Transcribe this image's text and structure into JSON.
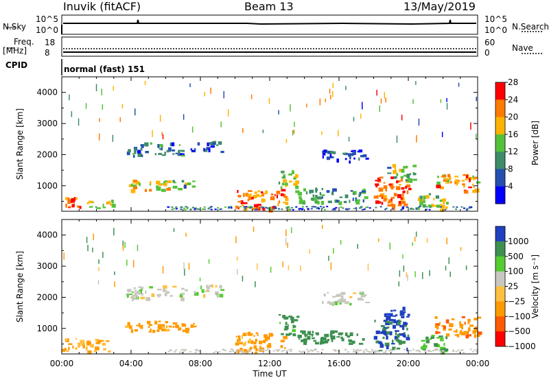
{
  "header": {
    "station": "Inuvik (fitACF)",
    "beam": "Beam 13",
    "date": "13/May/2019"
  },
  "status_panels": {
    "nsky_label": "N.Sky",
    "nsky_ticks": [
      "10^5",
      "10^0"
    ],
    "nsearch_label": "N.Search",
    "nsearch_ticks": [
      "10^5",
      "10^0"
    ],
    "freq_label": "Freq.",
    "freq_unit": "[MHz]",
    "freq_ticks": [
      "18",
      "8"
    ],
    "nave_label": "Nave",
    "nave_ticks": [
      "60",
      "0"
    ],
    "cpid_label": "CPID",
    "cpid_text": "normal (fast) 151"
  },
  "chart_data": [
    {
      "type": "heatmap",
      "name": "power",
      "ylabel": "Slant Range [km]",
      "ylim": [
        180,
        4500
      ],
      "y_ticks": [
        1000,
        2000,
        3000,
        4000
      ],
      "xlim": [
        0,
        24
      ],
      "x_tick_labels": [
        "00:00",
        "04:00",
        "08:00",
        "12:00",
        "16:00",
        "20:00",
        "00:00"
      ],
      "colorbar_label": "Power [dB]",
      "colorbar_ticks": [
        "4",
        "8",
        "12",
        "16",
        "20",
        "24",
        "28"
      ],
      "colors": [
        "#0000ff",
        "#2550b0",
        "#3f8c6a",
        "#55c13a",
        "#ffb300",
        "#ff7a00",
        "#ff0000"
      ],
      "clusters": [
        {
          "t": [
            0.0,
            1.3
          ],
          "r": [
            280,
            700
          ],
          "value": 26
        },
        {
          "t": [
            1.3,
            3.0
          ],
          "r": [
            300,
            560
          ],
          "value": 18
        },
        {
          "t": [
            3.6,
            6.3
          ],
          "r": [
            880,
            1200
          ],
          "value": 21
        },
        {
          "t": [
            6.3,
            7.6
          ],
          "r": [
            900,
            1220
          ],
          "value": 14
        },
        {
          "t": [
            3.7,
            7.0
          ],
          "r": [
            1980,
            2400
          ],
          "value": 10
        },
        {
          "t": [
            7.4,
            9.2
          ],
          "r": [
            2100,
            2450
          ],
          "value": 7
        },
        {
          "t": [
            10.0,
            13.0
          ],
          "r": [
            250,
            900
          ],
          "value": 24
        },
        {
          "t": [
            12.5,
            13.6
          ],
          "r": [
            800,
            1500
          ],
          "value": 16
        },
        {
          "t": [
            13.6,
            17.5
          ],
          "r": [
            500,
            950
          ],
          "value": 12
        },
        {
          "t": [
            15.0,
            17.6
          ],
          "r": [
            1800,
            2200
          ],
          "value": 7
        },
        {
          "t": [
            18.0,
            20.0
          ],
          "r": [
            300,
            1300
          ],
          "value": 25
        },
        {
          "t": [
            18.6,
            20.3
          ],
          "r": [
            1200,
            1700
          ],
          "value": 14
        },
        {
          "t": [
            20.5,
            22.2
          ],
          "r": [
            250,
            800
          ],
          "value": 17
        },
        {
          "t": [
            21.5,
            24.0
          ],
          "r": [
            800,
            1400
          ],
          "value": 22
        }
      ]
    },
    {
      "type": "heatmap",
      "name": "velocity",
      "ylabel": "Slant Range [km]",
      "ylim": [
        180,
        4500
      ],
      "y_ticks": [
        1000,
        2000,
        3000,
        4000
      ],
      "xlim": [
        0,
        24
      ],
      "x_tick_labels": [
        "00:00",
        "04:00",
        "08:00",
        "12:00",
        "16:00",
        "20:00",
        "00:00"
      ],
      "xlabel": "Time UT",
      "colorbar_label": "Velocity [m s⁻¹]",
      "colorbar_ticks": [
        "1000",
        "500",
        "100",
        "25",
        "−25",
        "−100",
        "−500",
        "−1000"
      ],
      "colors": [
        "#2040c0",
        "#3d9050",
        "#55cc30",
        "#c8c8c0",
        "#ffc040",
        "#ff9a00",
        "#ff5a00",
        "#ff0000"
      ],
      "clusters": [
        {
          "t": [
            0.0,
            2.8
          ],
          "r": [
            280,
            700
          ],
          "value": -100
        },
        {
          "t": [
            3.6,
            6.5
          ],
          "r": [
            900,
            1250
          ],
          "value": -200
        },
        {
          "t": [
            6.3,
            7.6
          ],
          "r": [
            900,
            1220
          ],
          "value": -300
        },
        {
          "t": [
            3.7,
            7.2
          ],
          "r": [
            1980,
            2400
          ],
          "value": 0
        },
        {
          "t": [
            7.4,
            9.2
          ],
          "r": [
            2100,
            2450
          ],
          "value": 0
        },
        {
          "t": [
            10.0,
            13.0
          ],
          "r": [
            250,
            900
          ],
          "value": -200
        },
        {
          "t": [
            12.5,
            13.6
          ],
          "r": [
            800,
            1500
          ],
          "value": 200
        },
        {
          "t": [
            13.6,
            17.5
          ],
          "r": [
            500,
            950
          ],
          "value": 300
        },
        {
          "t": [
            15.0,
            17.6
          ],
          "r": [
            1800,
            2200
          ],
          "value": 0
        },
        {
          "t": [
            18.0,
            20.0
          ],
          "r": [
            300,
            1300
          ],
          "value": 500
        },
        {
          "t": [
            18.6,
            20.3
          ],
          "r": [
            1200,
            1700
          ],
          "value": 600
        },
        {
          "t": [
            20.5,
            22.2
          ],
          "r": [
            250,
            800
          ],
          "value": 100
        },
        {
          "t": [
            21.5,
            24.0
          ],
          "r": [
            800,
            1400
          ],
          "value": -400
        }
      ]
    }
  ]
}
